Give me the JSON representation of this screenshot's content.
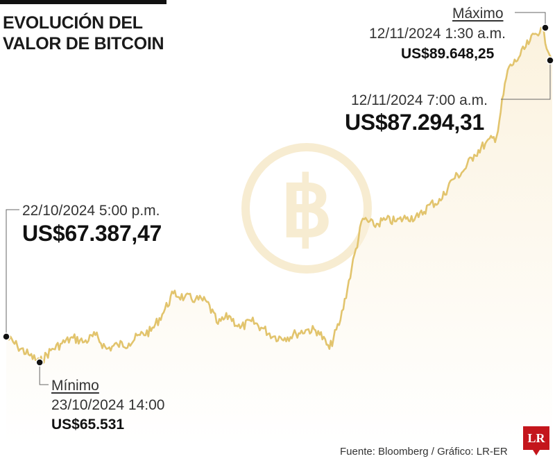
{
  "title_lines": [
    "EVOLUCIÓN DEL",
    "VALOR DE BITCOIN"
  ],
  "colors": {
    "line": "#e2c46d",
    "area": "#fbf2de",
    "watermark": "#f7ecd1",
    "marker": "#111111",
    "logo": "#c4161c"
  },
  "icons": {
    "watermark": "bitcoin-icon"
  },
  "chart_data": {
    "type": "line",
    "title": "EVOLUCIÓN DEL VALOR DE BITCOIN",
    "xlabel": "",
    "ylabel": "",
    "grid": false,
    "legend": "none",
    "series": [
      {
        "x": [
          "22/10/2024 5:00 p.m.",
          "",
          "",
          "23/10/2024 14:00",
          "",
          "",
          "",
          "",
          "",
          "",
          "",
          "",
          "",
          "",
          "",
          "",
          "",
          "",
          "",
          "",
          "",
          "",
          "",
          "",
          "",
          "",
          "",
          "",
          "",
          "",
          "",
          "",
          "",
          "",
          "",
          "",
          "",
          "",
          "",
          "",
          "",
          "",
          "",
          "",
          "",
          "",
          "",
          "",
          "12/11/2024 1:30 a.m.",
          "12/11/2024 7:00 a.m."
        ],
        "values": [
          67387.47,
          66700,
          66100,
          65531,
          66400,
          66900,
          67300,
          67000,
          67500,
          66500,
          66800,
          66900,
          67500,
          67800,
          69000,
          70500,
          70200,
          70100,
          69900,
          68300,
          68900,
          68000,
          68500,
          68000,
          67400,
          67300,
          67600,
          67900,
          67800,
          66500,
          68600,
          72300,
          75900,
          75400,
          75800,
          75700,
          76000,
          76000,
          76900,
          77200,
          78700,
          79300,
          80500,
          81300,
          81800,
          86600,
          87500,
          88700,
          89648.25,
          87294.31
        ]
      }
    ],
    "annotations": [
      {
        "tag": "",
        "date": "22/10/2024 5:00 p.m.",
        "value": "US$67.387,47"
      },
      {
        "tag": "Mínimo",
        "date": "23/10/2024 14:00",
        "value": "US$65.531"
      },
      {
        "tag": "Máximo",
        "date": "12/11/2024 1:30 a.m.",
        "value": "US$89.648,25"
      },
      {
        "tag": "",
        "date": "12/11/2024 7:00 a.m.",
        "value": "US$87.294,31"
      }
    ]
  },
  "source": "Fuente: Bloomberg / Gráfico: LR-ER",
  "logo_text": "LR"
}
